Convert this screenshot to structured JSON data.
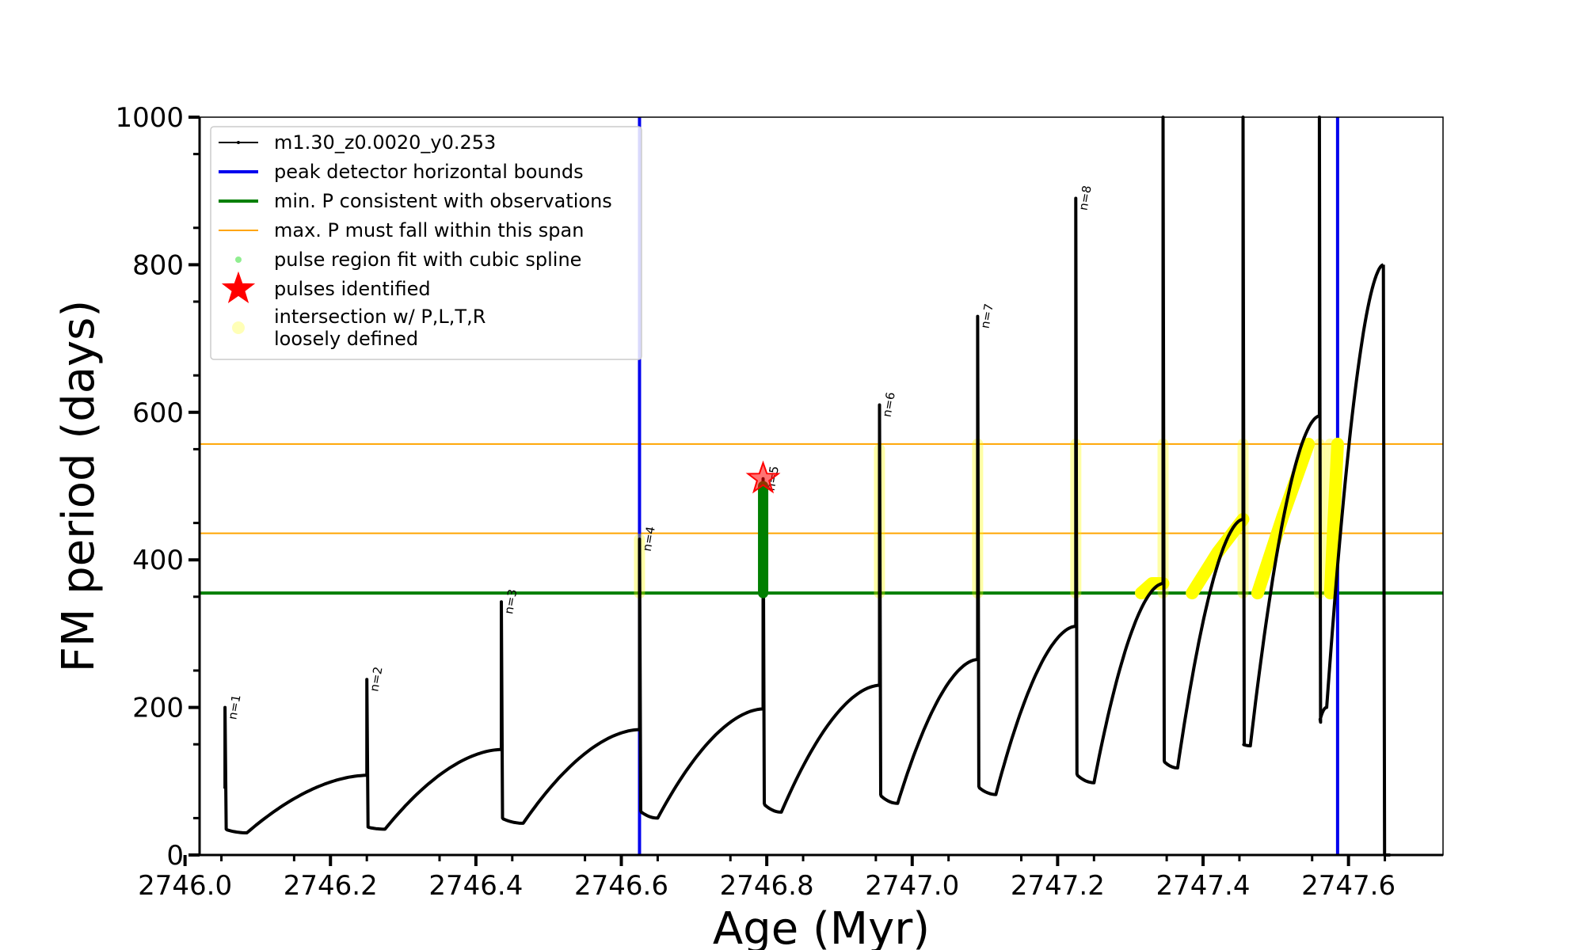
{
  "chart_data": {
    "type": "line",
    "xlabel": "Age (Myr)",
    "ylabel": "FM period (days)",
    "xlim": [
      2746.02,
      2747.73
    ],
    "ylim": [
      0,
      1000
    ],
    "x_ticks": [
      2746.0,
      2746.2,
      2746.4,
      2746.6,
      2746.8,
      2747.0,
      2747.2,
      2747.4,
      2747.6
    ],
    "x_tick_labels": [
      "2746.0",
      "2746.2",
      "2746.4",
      "2746.6",
      "2746.8",
      "2747.0",
      "2747.2",
      "2747.4",
      "2747.6"
    ],
    "y_ticks": [
      0,
      200,
      400,
      600,
      800,
      1000
    ],
    "y_tick_labels": [
      "0",
      "200",
      "400",
      "600",
      "800",
      "1000"
    ],
    "grid": false,
    "legend_position": "top-left",
    "legend": [
      {
        "label": "m1.30_z0.0020_y0.253",
        "kind": "line-marker",
        "color": "#000000"
      },
      {
        "label": "peak detector horizontal bounds",
        "kind": "line",
        "color": "#0000ee"
      },
      {
        "label": "min. P consistent with observations",
        "kind": "line",
        "color": "#007f00"
      },
      {
        "label": "max. P must fall within this span",
        "kind": "line",
        "color": "#ffa500"
      },
      {
        "label": "pulse region fit with cubic spline",
        "kind": "dot",
        "color": "#90ee90"
      },
      {
        "label": "pulses identified",
        "kind": "star",
        "color": "#ff0000"
      },
      {
        "label": "intersection w/ P,L,T,R\nloosely defined",
        "kind": "dot",
        "color": "#ffff99"
      }
    ],
    "vertical_lines": {
      "label": "peak detector horizontal bounds",
      "x": [
        2746.625,
        2747.585
      ],
      "color": "#0000ee"
    },
    "min_period_line": {
      "label": "min. P consistent with observations",
      "y": 355,
      "color": "#007f00"
    },
    "max_period_span": {
      "label": "max. P must fall within this span",
      "y": [
        436,
        557
      ],
      "color": "#ffa500"
    },
    "series": [
      {
        "name": "m1.30_z0.0020_y0.253",
        "color": "#000000",
        "pulses": [
          {
            "x": 2746.055,
            "start": 90,
            "peak": 200,
            "drop": 35,
            "min": 30,
            "min_x": 2746.085,
            "next": 108,
            "label": "n=1"
          },
          {
            "x": 2746.25,
            "start": 108,
            "peak": 238,
            "drop": 38,
            "min": 35,
            "min_x": 2746.275,
            "next": 143,
            "label": "n=2"
          },
          {
            "x": 2746.435,
            "start": 143,
            "peak": 343,
            "drop": 50,
            "min": 43,
            "min_x": 2746.465,
            "next": 170,
            "label": "n=3"
          },
          {
            "x": 2746.625,
            "start": 170,
            "peak": 428,
            "drop": 60,
            "min": 50,
            "min_x": 2746.65,
            "next": 198,
            "label": "n=4"
          },
          {
            "x": 2746.795,
            "start": 198,
            "peak": 510,
            "drop": 70,
            "min": 58,
            "min_x": 2746.82,
            "next": 230,
            "label": "n=5"
          },
          {
            "x": 2746.955,
            "start": 230,
            "peak": 610,
            "drop": 82,
            "min": 70,
            "min_x": 2746.98,
            "next": 265,
            "label": "n=6"
          },
          {
            "x": 2747.09,
            "start": 265,
            "peak": 730,
            "drop": 93,
            "min": 82,
            "min_x": 2747.115,
            "next": 310,
            "label": "n=7"
          },
          {
            "x": 2747.225,
            "start": 310,
            "peak": 890,
            "drop": 110,
            "min": 98,
            "min_x": 2747.25,
            "next": 368,
            "label": "n=8"
          },
          {
            "x": 2747.345,
            "start": 368,
            "peak": 1000,
            "drop": 128,
            "min": 118,
            "min_x": 2747.365,
            "next": 455,
            "label": ""
          },
          {
            "x": 2747.455,
            "start": 455,
            "peak": 1000,
            "drop": 150,
            "min": 148,
            "min_x": 2747.465,
            "next": 595,
            "label": ""
          },
          {
            "x": 2747.56,
            "start": 595,
            "peak": 1000,
            "drop": 180,
            "min": 200,
            "min_x": 2747.57,
            "next": 800,
            "label": ""
          },
          {
            "x": 2747.648,
            "start": 800,
            "peak": 800,
            "drop": 0,
            "min": 0,
            "min_x": 2747.652,
            "next": 0,
            "label": ""
          }
        ]
      }
    ],
    "spline_fit": {
      "name": "pulse region fit with cubic spline",
      "x": 2746.795,
      "y_range": [
        355,
        500
      ],
      "color": "#007f00"
    },
    "pulses_identified": [
      {
        "x": 2746.795,
        "y": 510
      }
    ],
    "intersection_regions": [
      {
        "x": 2746.625,
        "y_range": [
          355,
          428
        ]
      },
      {
        "x": 2746.955,
        "y_range": [
          355,
          550
        ]
      },
      {
        "x": 2747.09,
        "y_range": [
          355,
          557
        ]
      },
      {
        "x": 2747.225,
        "y_range": [
          355,
          557
        ]
      },
      {
        "x": 2747.345,
        "y_range": [
          355,
          557
        ]
      },
      {
        "x": 2747.455,
        "y_range": [
          355,
          557
        ]
      },
      {
        "x": 2747.56,
        "y_range": [
          355,
          557
        ]
      },
      {
        "x": 2747.575,
        "y_range": [
          355,
          557
        ]
      }
    ],
    "intersection_curves": [
      {
        "x": [
          2747.315,
          2747.33,
          2747.345
        ],
        "y": [
          355,
          368,
          368
        ]
      },
      {
        "x": [
          2747.385,
          2747.42,
          2747.455
        ],
        "y": [
          355,
          410,
          455
        ]
      },
      {
        "x": [
          2747.475,
          2747.51,
          2747.545
        ],
        "y": [
          355,
          460,
          557
        ]
      },
      {
        "x": [
          2747.575,
          2747.585
        ],
        "y": [
          355,
          557
        ]
      }
    ]
  }
}
